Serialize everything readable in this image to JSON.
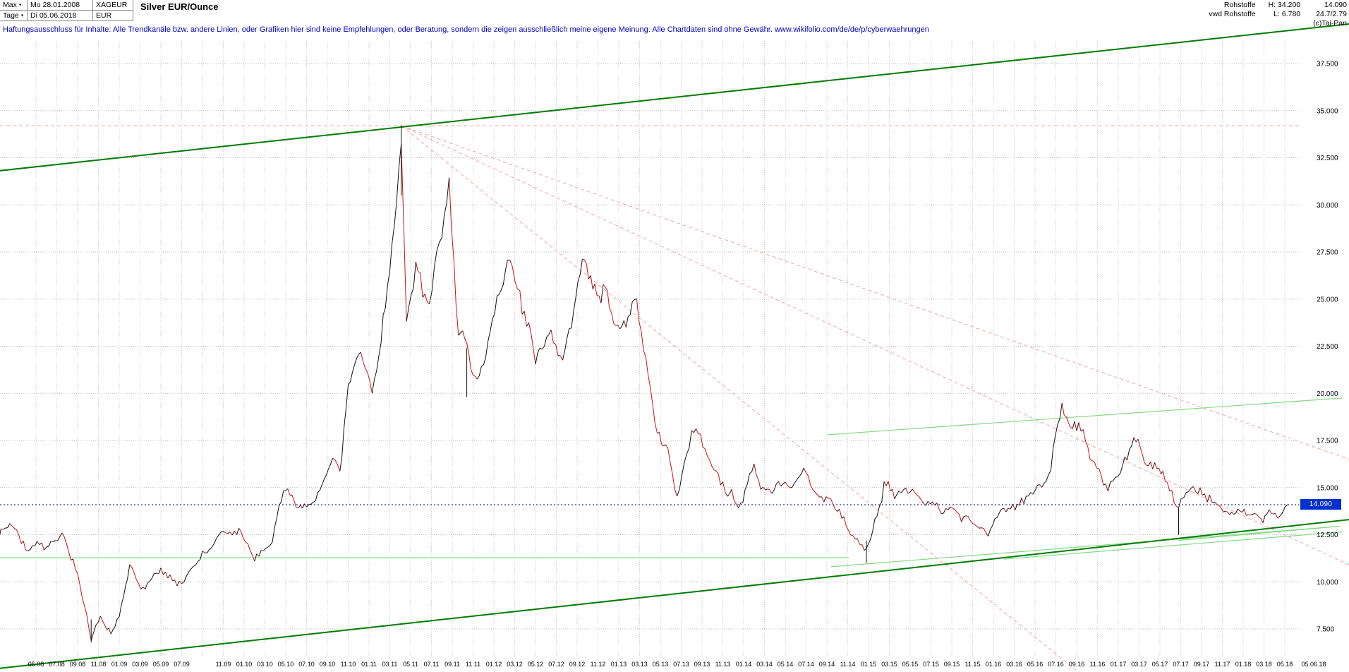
{
  "header": {
    "range_label": "Max",
    "start_date": "Mo 28.01.2008",
    "symbol": "XAGEUR",
    "period_label": "Tage",
    "end_date": "Di 05.06.2018",
    "currency": "EUR",
    "title": "Silver EUR/Ounce",
    "dropdown_arrow": "▾"
  },
  "info": {
    "source_line1": "Rohstoffe",
    "source_line2": "vwd Rohstoffe",
    "high": "H: 34.200",
    "low": "L: 6.780",
    "last": "14.090",
    "extra": "24.7/2.79",
    "copyright": "(c)Tai-Pan"
  },
  "disclaimer": "Haftungsausschluss für Inhalte: Alle Trendkanäle bzw. andere Linien, oder Grafiken hier sind keine Empfehlungen, oder Beratung, sondern die zeigen ausschließlich meine eigene Meinung. Alle Chartdaten sind ohne Gewähr.  www.wikifolio.com/de/de/p/cyberwaehrungen",
  "colors": {
    "up": "#101010",
    "down": "#cc1111",
    "channel_green": "#007a00",
    "light_green": "#86d886",
    "red_dashed": "#f2a2a2",
    "blue_line": "#2233cc",
    "price_tag_bg": "#0030d0",
    "grid": "#c9c9c9",
    "disclaimer_blue": "#0000cc",
    "axis_text": "#000000"
  },
  "chart_data": {
    "type": "line",
    "title": "Silver EUR/Ounce",
    "instrument": "XAGEUR",
    "unit": "EUR per ounce",
    "period": "28.01.2008 - 05.06.2018",
    "high": 34.2,
    "low": 6.78,
    "current_price": 14.09,
    "current_price_label": "14.090",
    "ylim": [
      5.0,
      39.5
    ],
    "grid": true,
    "y_axis_side": "right",
    "y_ticks": [
      37.5,
      35.0,
      32.5,
      30.0,
      27.5,
      25.0,
      22.5,
      20.0,
      17.5,
      15.0,
      12.5,
      10.0,
      7.5
    ],
    "y_tick_labels": [
      "37.500",
      "35.000",
      "32.500",
      "30.000",
      "27.500",
      "25.000",
      "22.500",
      "20.000",
      "17.500",
      "15.000",
      "12.500",
      "10.000",
      "7.500"
    ],
    "x_tick_labels": [
      "05.08",
      "07.08",
      "09.08",
      "11.08",
      "01.09",
      "03.09",
      "05.09",
      "07.09",
      "11.09",
      "01.10",
      "03.10",
      "05.10",
      "07.10",
      "09.10",
      "11.10",
      "01.11",
      "03.11",
      "05.11",
      "07.11",
      "09.11",
      "11.11",
      "01.12",
      "03.12",
      "05.12",
      "07.12",
      "09.12",
      "11.12",
      "01.13",
      "03.13",
      "05.13",
      "07.13",
      "09.13",
      "11.13",
      "01.14",
      "03.14",
      "05.14",
      "07.14",
      "09.14",
      "11.14",
      "01.15",
      "03.15",
      "05.15",
      "07.15",
      "09.15",
      "11.15",
      "01.16",
      "03.16",
      "05.16",
      "07.16",
      "09.16",
      "11.16",
      "01.17",
      "03.17",
      "05.17",
      "07.17",
      "09.17",
      "11.17",
      "01.18",
      "03.18",
      "05.18",
      "05.06.18"
    ],
    "x_unit": "months since 2008-01",
    "keypoints": [
      [
        0,
        12.3
      ],
      [
        1.7,
        13.5
      ],
      [
        3,
        12.1
      ],
      [
        5,
        11.8
      ],
      [
        6.5,
        12.4
      ],
      [
        8,
        10.6
      ],
      [
        9.3,
        6.9
      ],
      [
        10.2,
        8.3
      ],
      [
        11.2,
        7.3
      ],
      [
        12,
        8.1
      ],
      [
        13,
        11.0
      ],
      [
        14.5,
        9.7
      ],
      [
        16,
        10.8
      ],
      [
        18,
        10.0
      ],
      [
        20,
        11.4
      ],
      [
        22,
        12.5
      ],
      [
        23.5,
        12.9
      ],
      [
        25,
        11.3
      ],
      [
        26.5,
        12.0
      ],
      [
        28,
        15.0
      ],
      [
        29,
        14.0
      ],
      [
        30,
        14.2
      ],
      [
        31.5,
        15.3
      ],
      [
        32.5,
        16.2
      ],
      [
        33.2,
        15.4
      ],
      [
        34,
        19.8
      ],
      [
        35,
        22.4
      ],
      [
        36.3,
        20.4
      ],
      [
        38,
        26.3
      ],
      [
        39.1,
        34.0
      ],
      [
        39.6,
        24.2
      ],
      [
        40.5,
        26.8
      ],
      [
        41.8,
        23.8
      ],
      [
        43,
        28.3
      ],
      [
        43.7,
        30.6
      ],
      [
        44.6,
        23.2
      ],
      [
        45.4,
        22.6
      ],
      [
        46,
        20.9
      ],
      [
        47,
        21.8
      ],
      [
        48.3,
        24.3
      ],
      [
        49.3,
        27.5
      ],
      [
        50.5,
        24.6
      ],
      [
        52,
        21.9
      ],
      [
        53.5,
        22.4
      ],
      [
        54.6,
        21.8
      ],
      [
        56.5,
        26.9
      ],
      [
        57.5,
        25.6
      ],
      [
        58.5,
        26.0
      ],
      [
        59.5,
        24.2
      ],
      [
        60.5,
        23.7
      ],
      [
        61.5,
        24.3
      ],
      [
        62.6,
        22.3
      ],
      [
        63.7,
        17.9
      ],
      [
        64.5,
        17.2
      ],
      [
        65.6,
        14.3
      ],
      [
        67,
        18.3
      ],
      [
        68.5,
        16.4
      ],
      [
        70,
        15.2
      ],
      [
        71.5,
        14.2
      ],
      [
        73,
        15.8
      ],
      [
        74.5,
        14.6
      ],
      [
        76,
        15.0
      ],
      [
        78,
        15.5
      ],
      [
        79.5,
        14.7
      ],
      [
        81,
        13.6
      ],
      [
        82.5,
        12.3
      ],
      [
        83.8,
        11.4
      ],
      [
        84.6,
        13.1
      ],
      [
        85.5,
        15.3
      ],
      [
        86.5,
        14.7
      ],
      [
        88,
        15.1
      ],
      [
        89.5,
        14.3
      ],
      [
        91,
        13.5
      ],
      [
        92.5,
        14.1
      ],
      [
        94,
        13.0
      ],
      [
        95.5,
        12.7
      ],
      [
        97,
        13.8
      ],
      [
        98.5,
        13.9
      ],
      [
        100,
        14.9
      ],
      [
        101.3,
        15.9
      ],
      [
        102.6,
        19.5
      ],
      [
        103.4,
        17.7
      ],
      [
        104.2,
        18.1
      ],
      [
        105.5,
        16.3
      ],
      [
        107,
        15.3
      ],
      [
        108.2,
        15.7
      ],
      [
        109.5,
        17.1
      ],
      [
        110.5,
        16.5
      ],
      [
        111.5,
        16.0
      ],
      [
        112.5,
        15.4
      ],
      [
        113.8,
        13.9
      ],
      [
        115,
        14.9
      ],
      [
        116.3,
        14.6
      ],
      [
        117.5,
        14.2
      ],
      [
        118.5,
        13.8
      ],
      [
        119.5,
        14.1
      ],
      [
        120.5,
        13.9
      ],
      [
        121.5,
        13.4
      ],
      [
        122.5,
        13.5
      ],
      [
        123.3,
        13.4
      ],
      [
        124.27,
        14.09
      ]
    ],
    "wicks": [
      [
        9.3,
        8.0,
        6.78
      ],
      [
        39.1,
        34.2,
        30.5
      ],
      [
        45.4,
        22.4,
        19.8
      ],
      [
        83.8,
        12.2,
        11.0
      ],
      [
        113.8,
        13.9,
        12.5
      ]
    ],
    "trendlines": {
      "channel_green": [
        [
          0.3,
          31.8,
          130.2,
          39.6
        ],
        [
          0.3,
          5.4,
          130.2,
          13.3
        ]
      ],
      "light_green": [
        [
          0.3,
          11.28,
          82.1,
          11.28
        ],
        [
          80.0,
          17.8,
          129.5,
          19.75
        ],
        [
          80.4,
          10.8,
          129.3,
          12.95
        ],
        [
          97.0,
          11.2,
          129.5,
          12.65
        ],
        [
          113.8,
          12.2,
          128.3,
          12.9
        ]
      ],
      "red_dashed": [
        [
          39.1,
          34.2,
          130.2,
          16.5
        ],
        [
          39.1,
          34.2,
          130.2,
          10.9
        ],
        [
          39.1,
          34.2,
          104.2,
          5.2
        ]
      ],
      "high_line_red": 34.2,
      "current_line_blue": 14.09
    },
    "legend": null,
    "annotations": [
      "current price marker 14.090 on right axis"
    ]
  }
}
